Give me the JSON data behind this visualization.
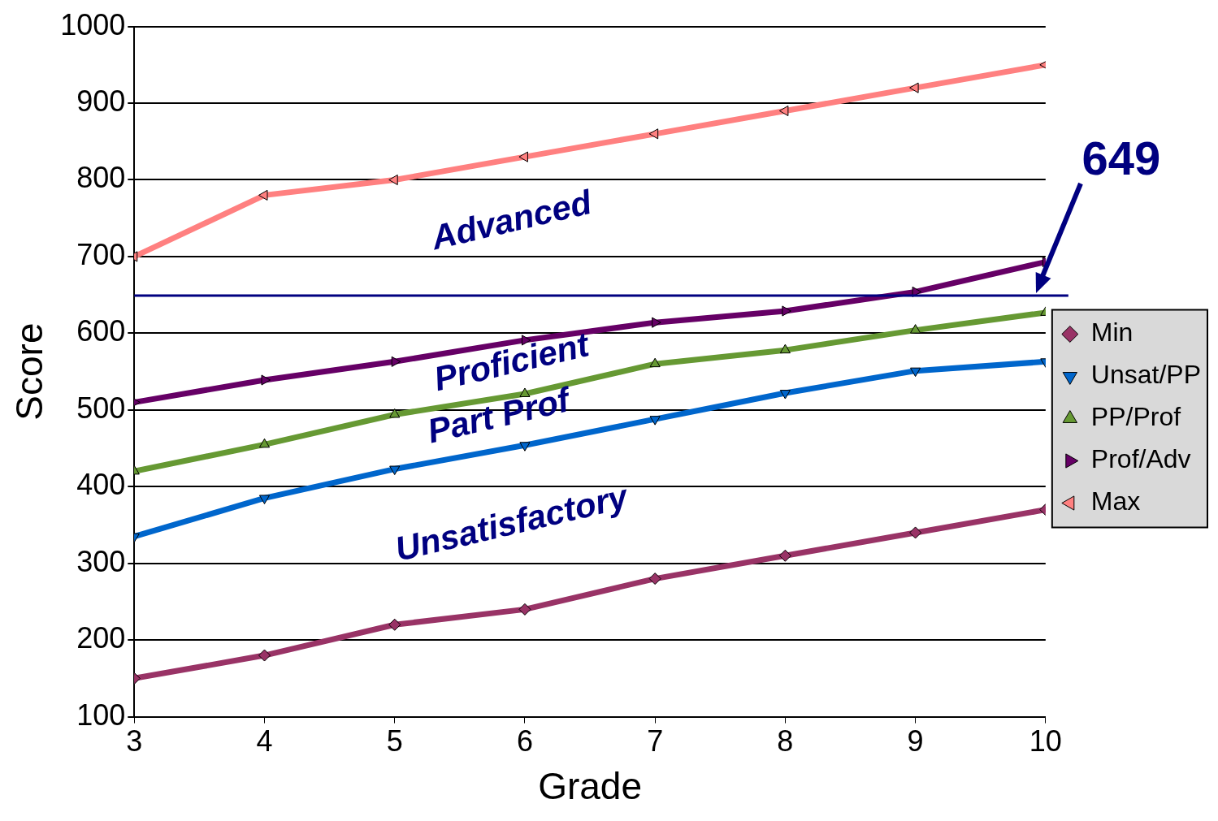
{
  "chart_data": {
    "type": "line",
    "xlabel": "Grade",
    "ylabel": "Score",
    "x": [
      3,
      4,
      5,
      6,
      7,
      8,
      9,
      10
    ],
    "series": [
      {
        "name": "Min",
        "color": "#993366",
        "marker": "diamond",
        "values": [
          150,
          180,
          220,
          240,
          280,
          310,
          340,
          370
        ]
      },
      {
        "name": "Unsat/PP",
        "color": "#0066cc",
        "marker": "triangle-down",
        "values": [
          335,
          385,
          423,
          454,
          488,
          522,
          551,
          563
        ]
      },
      {
        "name": "PP/Prof",
        "color": "#669933",
        "marker": "triangle",
        "values": [
          420,
          455,
          494,
          521,
          560,
          578,
          604,
          627
        ]
      },
      {
        "name": "Prof/Adv",
        "color": "#660066",
        "marker": "triangle-right",
        "values": [
          510,
          539,
          563,
          591,
          614,
          629,
          654,
          693
        ]
      },
      {
        "name": "Max",
        "color": "#ff8080",
        "marker": "triangle-left",
        "values": [
          700,
          780,
          800,
          830,
          860,
          890,
          920,
          950
        ]
      }
    ],
    "xlim": [
      3,
      10
    ],
    "xticks": [
      3,
      4,
      5,
      6,
      7,
      8,
      9,
      10
    ],
    "ylim": [
      100,
      1000
    ],
    "yticks": [
      100,
      200,
      300,
      400,
      500,
      600,
      700,
      800,
      900,
      1000
    ],
    "grid": "y",
    "legend": "right",
    "ref_lines": [
      {
        "axis": "y",
        "value": 649,
        "color": "#000080"
      }
    ],
    "annotations": [
      "Advanced",
      "Proficient",
      "Part Prof",
      "Unsatisfactory",
      {
        "text": "649",
        "x": 10,
        "y": 649
      }
    ]
  }
}
